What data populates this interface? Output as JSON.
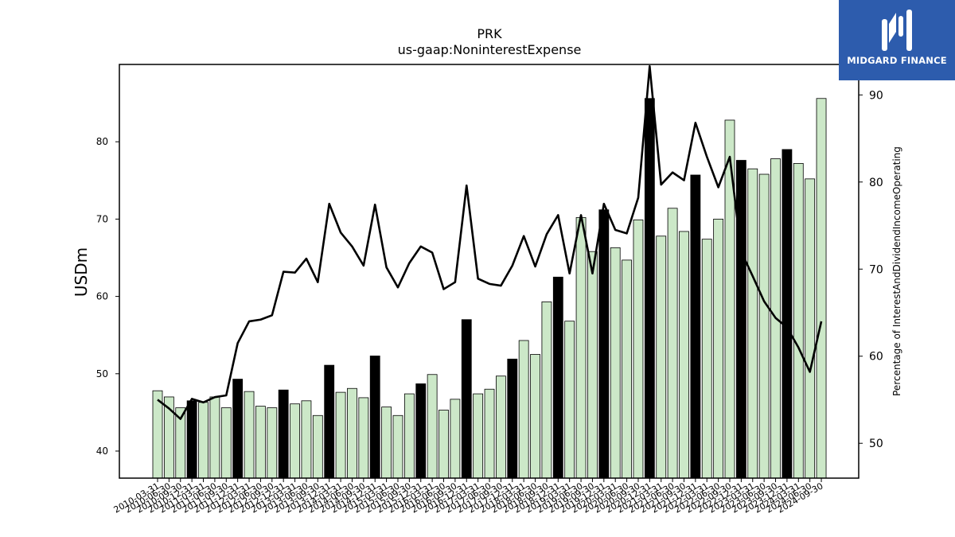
{
  "chart_data": {
    "type": "bar",
    "title": "PRK",
    "subtitle": "us-gaap:NoninterestExpense",
    "ylabel": "USDm",
    "y2label": "Percentage of InterestAndDividendIncomeOperating",
    "ylim": [
      36.5,
      90
    ],
    "y2lim": [
      46,
      93.5
    ],
    "yticks": [
      40,
      50,
      60,
      70,
      80
    ],
    "y2ticks": [
      50,
      60,
      70,
      80,
      90
    ],
    "bar_color": "#cce8c8",
    "highlight_color": "#000000",
    "line_color": "#000000",
    "categories": [
      "2010-03-31",
      "2010-06-30",
      "2010-09-30",
      "2010-12-31",
      "2011-03-31",
      "2011-06-30",
      "2011-09-30",
      "2011-12-31",
      "2012-03-31",
      "2012-06-30",
      "2012-09-30",
      "2012-12-31",
      "2013-03-31",
      "2013-06-30",
      "2013-09-30",
      "2013-12-31",
      "2014-03-31",
      "2014-06-30",
      "2014-09-30",
      "2014-12-31",
      "2015-03-31",
      "2015-06-30",
      "2015-09-30",
      "2015-12-31",
      "2016-03-31",
      "2016-06-30",
      "2016-09-30",
      "2016-12-31",
      "2017-03-31",
      "2017-06-30",
      "2017-09-30",
      "2017-12-31",
      "2018-03-31",
      "2018-06-30",
      "2018-09-30",
      "2018-12-31",
      "2019-03-31",
      "2019-06-30",
      "2019-09-30",
      "2019-12-31",
      "2020-03-31",
      "2020-06-30",
      "2020-09-30",
      "2020-12-31",
      "2021-03-31",
      "2021-06-30",
      "2021-09-30",
      "2021-12-31",
      "2022-03-31",
      "2022-06-30",
      "2022-09-30",
      "2022-12-31",
      "2023-03-31",
      "2023-06-30",
      "2023-09-30",
      "2023-12-31",
      "2024-03-31",
      "2024-06-30",
      "2024-09-30"
    ],
    "series": [
      {
        "values": [
          47.8,
          47.0,
          45.6,
          46.5,
          46.3,
          47.0,
          45.6,
          49.3,
          47.7,
          45.8,
          45.6,
          47.9,
          46.1,
          46.5,
          44.6,
          51.1,
          47.6,
          48.1,
          46.9,
          52.3,
          45.7,
          44.6,
          47.4,
          48.7,
          49.9,
          45.3,
          46.7,
          57.0,
          47.4,
          48.0,
          49.7,
          51.9,
          54.3,
          52.5,
          59.3,
          62.5,
          56.8,
          70.2,
          65.8,
          71.2,
          66.3,
          64.7,
          69.9,
          85.6,
          67.8,
          71.4,
          68.4,
          75.7,
          67.4,
          70.0,
          82.8,
          77.6,
          76.5,
          75.8,
          77.8,
          79.0,
          77.2,
          75.2,
          85.6
        ],
        "highlighted": [
          false,
          false,
          false,
          true,
          false,
          false,
          false,
          true,
          false,
          false,
          false,
          true,
          false,
          false,
          false,
          true,
          false,
          false,
          false,
          true,
          false,
          false,
          false,
          true,
          false,
          false,
          false,
          true,
          false,
          false,
          false,
          true,
          false,
          false,
          false,
          true,
          false,
          false,
          false,
          true,
          false,
          false,
          false,
          true,
          false,
          false,
          false,
          true,
          false,
          false,
          false,
          true,
          false,
          false,
          false,
          true,
          false,
          false,
          false
        ]
      },
      {
        "axis": "right",
        "values": [
          55.0,
          54.0,
          52.8,
          55.1,
          54.7,
          55.3,
          55.5,
          61.5,
          64.0,
          64.2,
          64.7,
          69.7,
          69.6,
          71.2,
          68.5,
          77.5,
          74.2,
          72.6,
          70.4,
          77.4,
          70.2,
          67.9,
          70.7,
          72.6,
          71.9,
          67.7,
          68.5,
          79.6,
          68.9,
          68.3,
          68.1,
          70.4,
          73.8,
          70.3,
          74.0,
          76.2,
          69.5,
          76.2,
          69.5,
          77.5,
          74.5,
          74.1,
          78.2,
          93.3,
          79.7,
          81.1,
          80.2,
          86.8,
          82.9,
          79.4,
          82.9,
          72.0,
          69.2,
          66.3,
          64.4,
          63.3,
          61.0,
          58.2,
          64.0
        ]
      }
    ]
  },
  "logo": {
    "text": "MIDGARD FINANCE"
  }
}
